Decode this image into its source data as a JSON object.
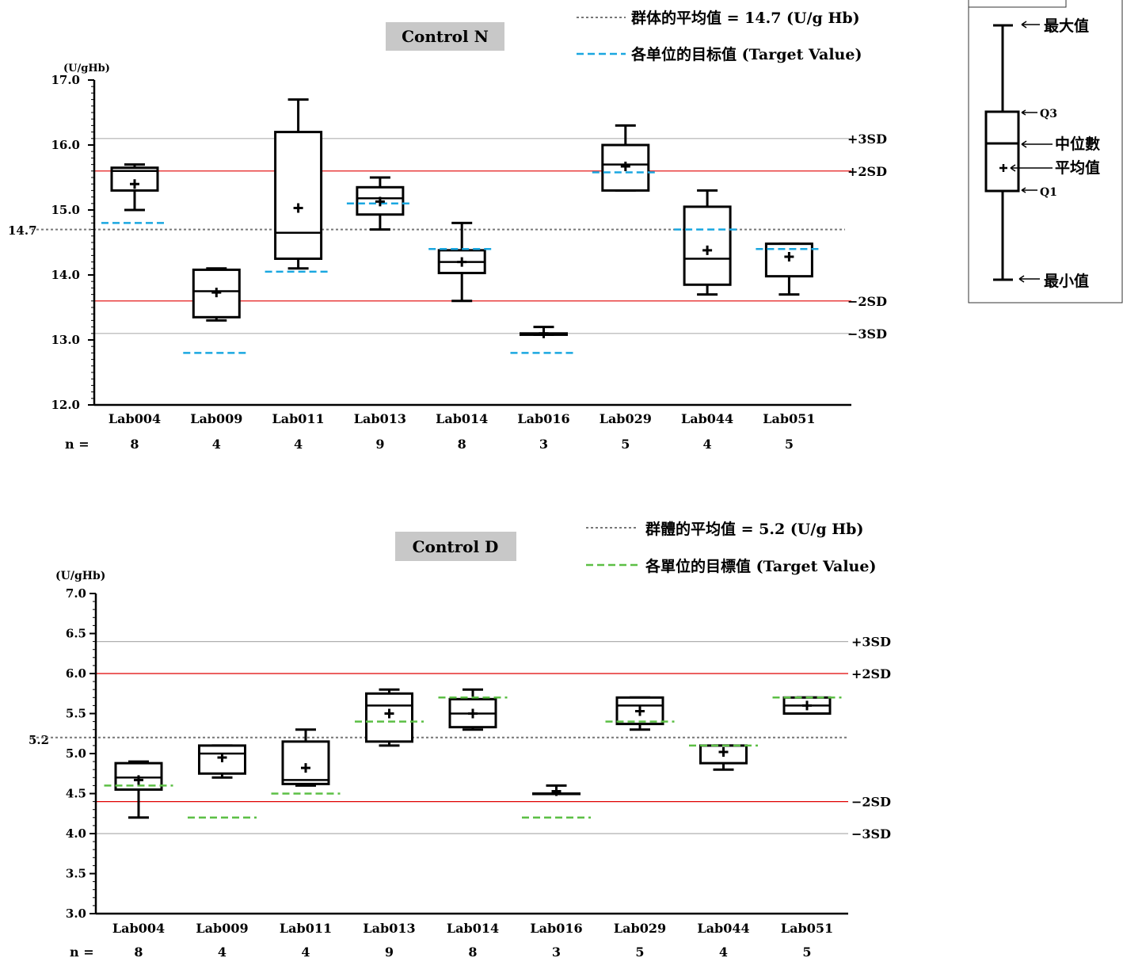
{
  "chart_data": [
    {
      "type": "box",
      "title": "Control N",
      "unit_label": "(U/gHb)",
      "ylim": [
        12.0,
        17.0
      ],
      "y_ticks": [
        "12.0",
        "13.0",
        "14.0",
        "15.0",
        "16.0",
        "17.0"
      ],
      "mean_label": "14.7",
      "n_label": "n =",
      "legend": {
        "mean_line": "群体的平均值 = 14.7 (U/g Hb)",
        "target": "各单位的目标值 (Target Value)"
      },
      "colors": {
        "target": "#1aa7e0",
        "sd2": "#e00000",
        "sd3": "#b0b0b0",
        "mean": "#777777"
      },
      "reference_lines": [
        {
          "label": "+3SD",
          "value": 16.1,
          "kind": "sd3"
        },
        {
          "label": "+2SD",
          "value": 15.6,
          "kind": "sd2"
        },
        {
          "label": "−2SD",
          "value": 13.6,
          "kind": "sd2"
        },
        {
          "label": "−3SD",
          "value": 13.1,
          "kind": "sd3"
        }
      ],
      "mean_value": 14.7,
      "categories": [
        "Lab004",
        "Lab009",
        "Lab011",
        "Lab013",
        "Lab014",
        "Lab016",
        "Lab029",
        "Lab044",
        "Lab051"
      ],
      "n": [
        "8",
        "4",
        "4",
        "9",
        "8",
        "3",
        "5",
        "4",
        "5"
      ],
      "boxes": [
        {
          "min": 15.0,
          "q1": 15.3,
          "median": 15.6,
          "q3": 15.65,
          "max": 15.7,
          "mean": 15.4,
          "target": 14.8
        },
        {
          "min": 13.3,
          "q1": 13.35,
          "median": 13.75,
          "q3": 14.08,
          "max": 14.1,
          "mean": 13.73,
          "target": 12.8
        },
        {
          "min": 14.1,
          "q1": 14.25,
          "median": 14.65,
          "q3": 16.2,
          "max": 16.7,
          "mean": 15.03,
          "target": 14.05
        },
        {
          "min": 14.7,
          "q1": 14.93,
          "median": 15.18,
          "q3": 15.35,
          "max": 15.5,
          "mean": 15.13,
          "target": 15.1
        },
        {
          "min": 13.6,
          "q1": 14.03,
          "median": 14.2,
          "q3": 14.38,
          "max": 14.8,
          "mean": 14.2,
          "target": 14.4
        },
        {
          "min": 13.08,
          "q1": 13.08,
          "median": 13.1,
          "q3": 13.1,
          "max": 13.2,
          "mean": 13.1,
          "target": 12.8
        },
        {
          "min": 15.3,
          "q1": 15.3,
          "median": 15.7,
          "q3": 16.0,
          "max": 16.3,
          "mean": 15.67,
          "target": 15.58
        },
        {
          "min": 13.7,
          "q1": 13.85,
          "median": 14.25,
          "q3": 15.05,
          "max": 15.3,
          "mean": 14.38,
          "target": 14.7
        },
        {
          "min": 13.7,
          "q1": 13.98,
          "median": 14.48,
          "q3": 14.48,
          "max": 14.48,
          "mean": 14.28,
          "target": 14.4
        }
      ]
    },
    {
      "type": "box",
      "title": "Control D",
      "unit_label": "(U/gHb)",
      "ylim": [
        3.0,
        7.0
      ],
      "y_ticks": [
        "3.0",
        "3.5",
        "4.0",
        "4.5",
        "5.0",
        "5.5",
        "6.0",
        "6.5",
        "7.0"
      ],
      "mean_label": "5.2",
      "n_label": "n =",
      "legend": {
        "mean_line": "群體的平均值 = 5.2 (U/g Hb)",
        "target": "各單位的目標值 (Target Value)"
      },
      "colors": {
        "target": "#5cbf45",
        "sd2": "#e00000",
        "sd3": "#b0b0b0",
        "mean": "#777777"
      },
      "reference_lines": [
        {
          "label": "+3SD",
          "value": 6.4,
          "kind": "sd3"
        },
        {
          "label": "+2SD",
          "value": 6.0,
          "kind": "sd2"
        },
        {
          "label": "−2SD",
          "value": 4.4,
          "kind": "sd2"
        },
        {
          "label": "−3SD",
          "value": 4.0,
          "kind": "sd3"
        }
      ],
      "mean_value": 5.2,
      "categories": [
        "Lab004",
        "Lab009",
        "Lab011",
        "Lab013",
        "Lab014",
        "Lab016",
        "Lab029",
        "Lab044",
        "Lab051"
      ],
      "n": [
        "8",
        "4",
        "4",
        "9",
        "8",
        "3",
        "5",
        "4",
        "5"
      ],
      "boxes": [
        {
          "min": 4.2,
          "q1": 4.55,
          "median": 4.7,
          "q3": 4.88,
          "max": 4.9,
          "mean": 4.67,
          "target": 4.6
        },
        {
          "min": 4.7,
          "q1": 4.75,
          "median": 5.0,
          "q3": 5.1,
          "max": 5.1,
          "mean": 4.95,
          "target": 4.2
        },
        {
          "min": 4.6,
          "q1": 4.62,
          "median": 4.67,
          "q3": 5.15,
          "max": 5.3,
          "mean": 4.82,
          "target": 4.5
        },
        {
          "min": 5.1,
          "q1": 5.15,
          "median": 5.6,
          "q3": 5.75,
          "max": 5.8,
          "mean": 5.5,
          "target": 5.4
        },
        {
          "min": 5.3,
          "q1": 5.33,
          "median": 5.5,
          "q3": 5.68,
          "max": 5.8,
          "mean": 5.5,
          "target": 5.7
        },
        {
          "min": 4.5,
          "q1": 4.5,
          "median": 4.5,
          "q3": 4.5,
          "max": 4.6,
          "mean": 4.53,
          "target": 4.2
        },
        {
          "min": 5.3,
          "q1": 5.37,
          "median": 5.6,
          "q3": 5.7,
          "max": 5.7,
          "mean": 5.53,
          "target": 5.4
        },
        {
          "min": 4.8,
          "q1": 4.88,
          "median": 5.1,
          "q3": 5.1,
          "max": 5.1,
          "mean": 5.02,
          "target": 5.1
        },
        {
          "min": 5.5,
          "q1": 5.5,
          "median": 5.6,
          "q3": 5.7,
          "max": 5.7,
          "mean": 5.6,
          "target": 5.7
        }
      ]
    }
  ],
  "box_key": {
    "max": "最大值",
    "q3": "Q3",
    "median": "中位數",
    "mean": "平均值",
    "q1": "Q1",
    "min": "最小值"
  }
}
